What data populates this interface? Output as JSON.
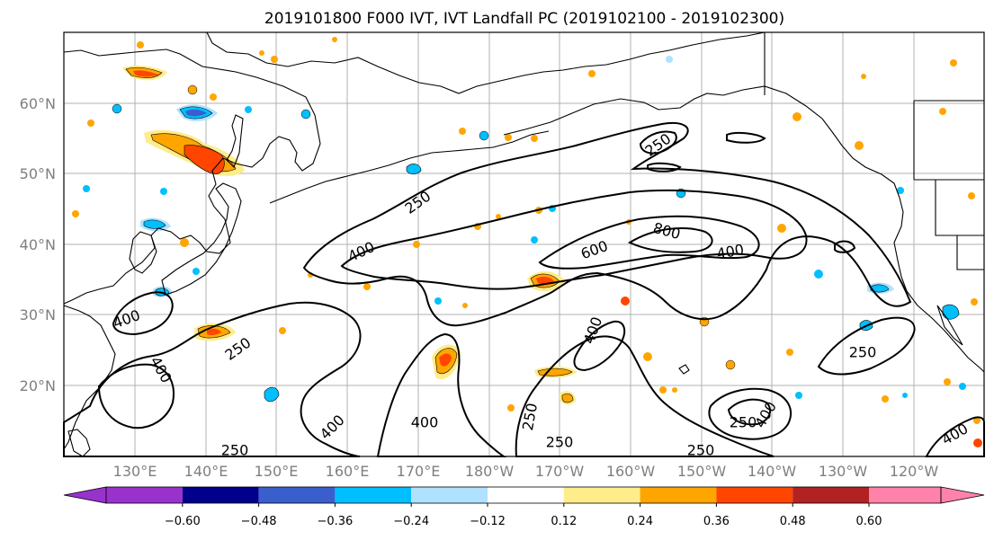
{
  "title": "2019101800 F000 IVT, IVT Landfall PC (2019102100 - 2019102300)",
  "lat_labels": [
    "60°N",
    "50°N",
    "40°N",
    "30°N",
    "20°N"
  ],
  "lon_labels": [
    "130°E",
    "140°E",
    "150°E",
    "160°E",
    "170°E",
    "180°W",
    "170°W",
    "160°W",
    "150°W",
    "140°W",
    "130°W",
    "120°W"
  ],
  "colorbar": {
    "ticks": [
      "−0.60",
      "−0.48",
      "−0.36",
      "−0.24",
      "−0.12",
      "0.12",
      "0.24",
      "0.36",
      "0.48",
      "0.60"
    ],
    "colors": [
      "#9932cc",
      "#00008b",
      "#3a5fcd",
      "#00bfff",
      "#b0e2ff",
      "#ffffff",
      "#ffec8b",
      "#ffa500",
      "#ff4500",
      "#b22222",
      "#ff82ab"
    ],
    "extend": "both"
  },
  "contour_labels": [
    {
      "text": "250",
      "rot": -35
    },
    {
      "text": "250",
      "rot": -35
    },
    {
      "text": "400",
      "rot": -25
    },
    {
      "text": "600",
      "rot": -20
    },
    {
      "text": "800",
      "rot": 15
    },
    {
      "text": "400",
      "rot": -10
    },
    {
      "text": "400",
      "rot": -20
    },
    {
      "text": "400",
      "rot": 60
    },
    {
      "text": "250",
      "rot": -35
    },
    {
      "text": "250",
      "rot": 0
    },
    {
      "text": "400",
      "rot": -70
    },
    {
      "text": "400",
      "rot": 0
    },
    {
      "text": "400",
      "rot": -45
    },
    {
      "text": "250",
      "rot": -80
    },
    {
      "text": "250",
      "rot": 0
    },
    {
      "text": "250",
      "rot": 0
    },
    {
      "text": "250",
      "rot": 0
    },
    {
      "text": "250",
      "rot": 0
    },
    {
      "text": "400",
      "rot": -60
    },
    {
      "text": "400",
      "rot": -30
    }
  ]
}
